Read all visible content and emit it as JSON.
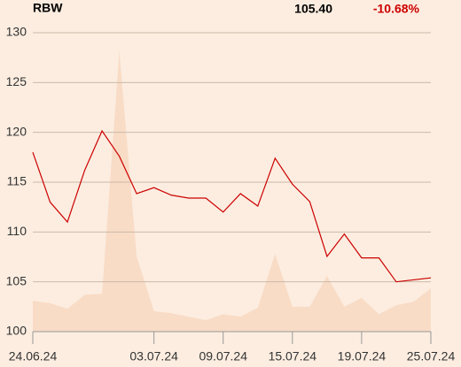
{
  "chart_data": {
    "type": "line",
    "ticker": "RBW",
    "price": "105.40",
    "change": "-10.68%",
    "change_color": "#cc0000",
    "categories": [
      "24.06.24",
      null,
      null,
      null,
      null,
      null,
      null,
      "03.07.24",
      null,
      null,
      null,
      "09.07.24",
      null,
      null,
      null,
      "15.07.24",
      null,
      null,
      null,
      "19.07.24",
      null,
      null,
      null,
      "25.07.24"
    ],
    "series": [
      {
        "kind": "area",
        "color": "#f9dcc6",
        "values": [
          103.1,
          102.85,
          102.3,
          103.7,
          103.8,
          128.2,
          107.55,
          102.05,
          101.85,
          101.5,
          101.15,
          101.75,
          101.5,
          102.4,
          107.8,
          102.5,
          102.5,
          105.6,
          102.5,
          103.4,
          101.75,
          102.65,
          103.0,
          104.35
        ]
      },
      {
        "kind": "line",
        "color": "#cc0000",
        "values": [
          118.0,
          113.0,
          111.0,
          116.2,
          120.15,
          117.6,
          113.85,
          114.45,
          113.7,
          113.4,
          113.4,
          112.0,
          113.85,
          112.6,
          117.4,
          114.8,
          113.05,
          107.55,
          109.8,
          107.4,
          107.4,
          105.0,
          105.2,
          105.4
        ]
      }
    ],
    "ylim": [
      100,
      130
    ],
    "yticks": [
      100,
      105,
      110,
      115,
      120,
      125,
      130
    ],
    "grid": true
  }
}
